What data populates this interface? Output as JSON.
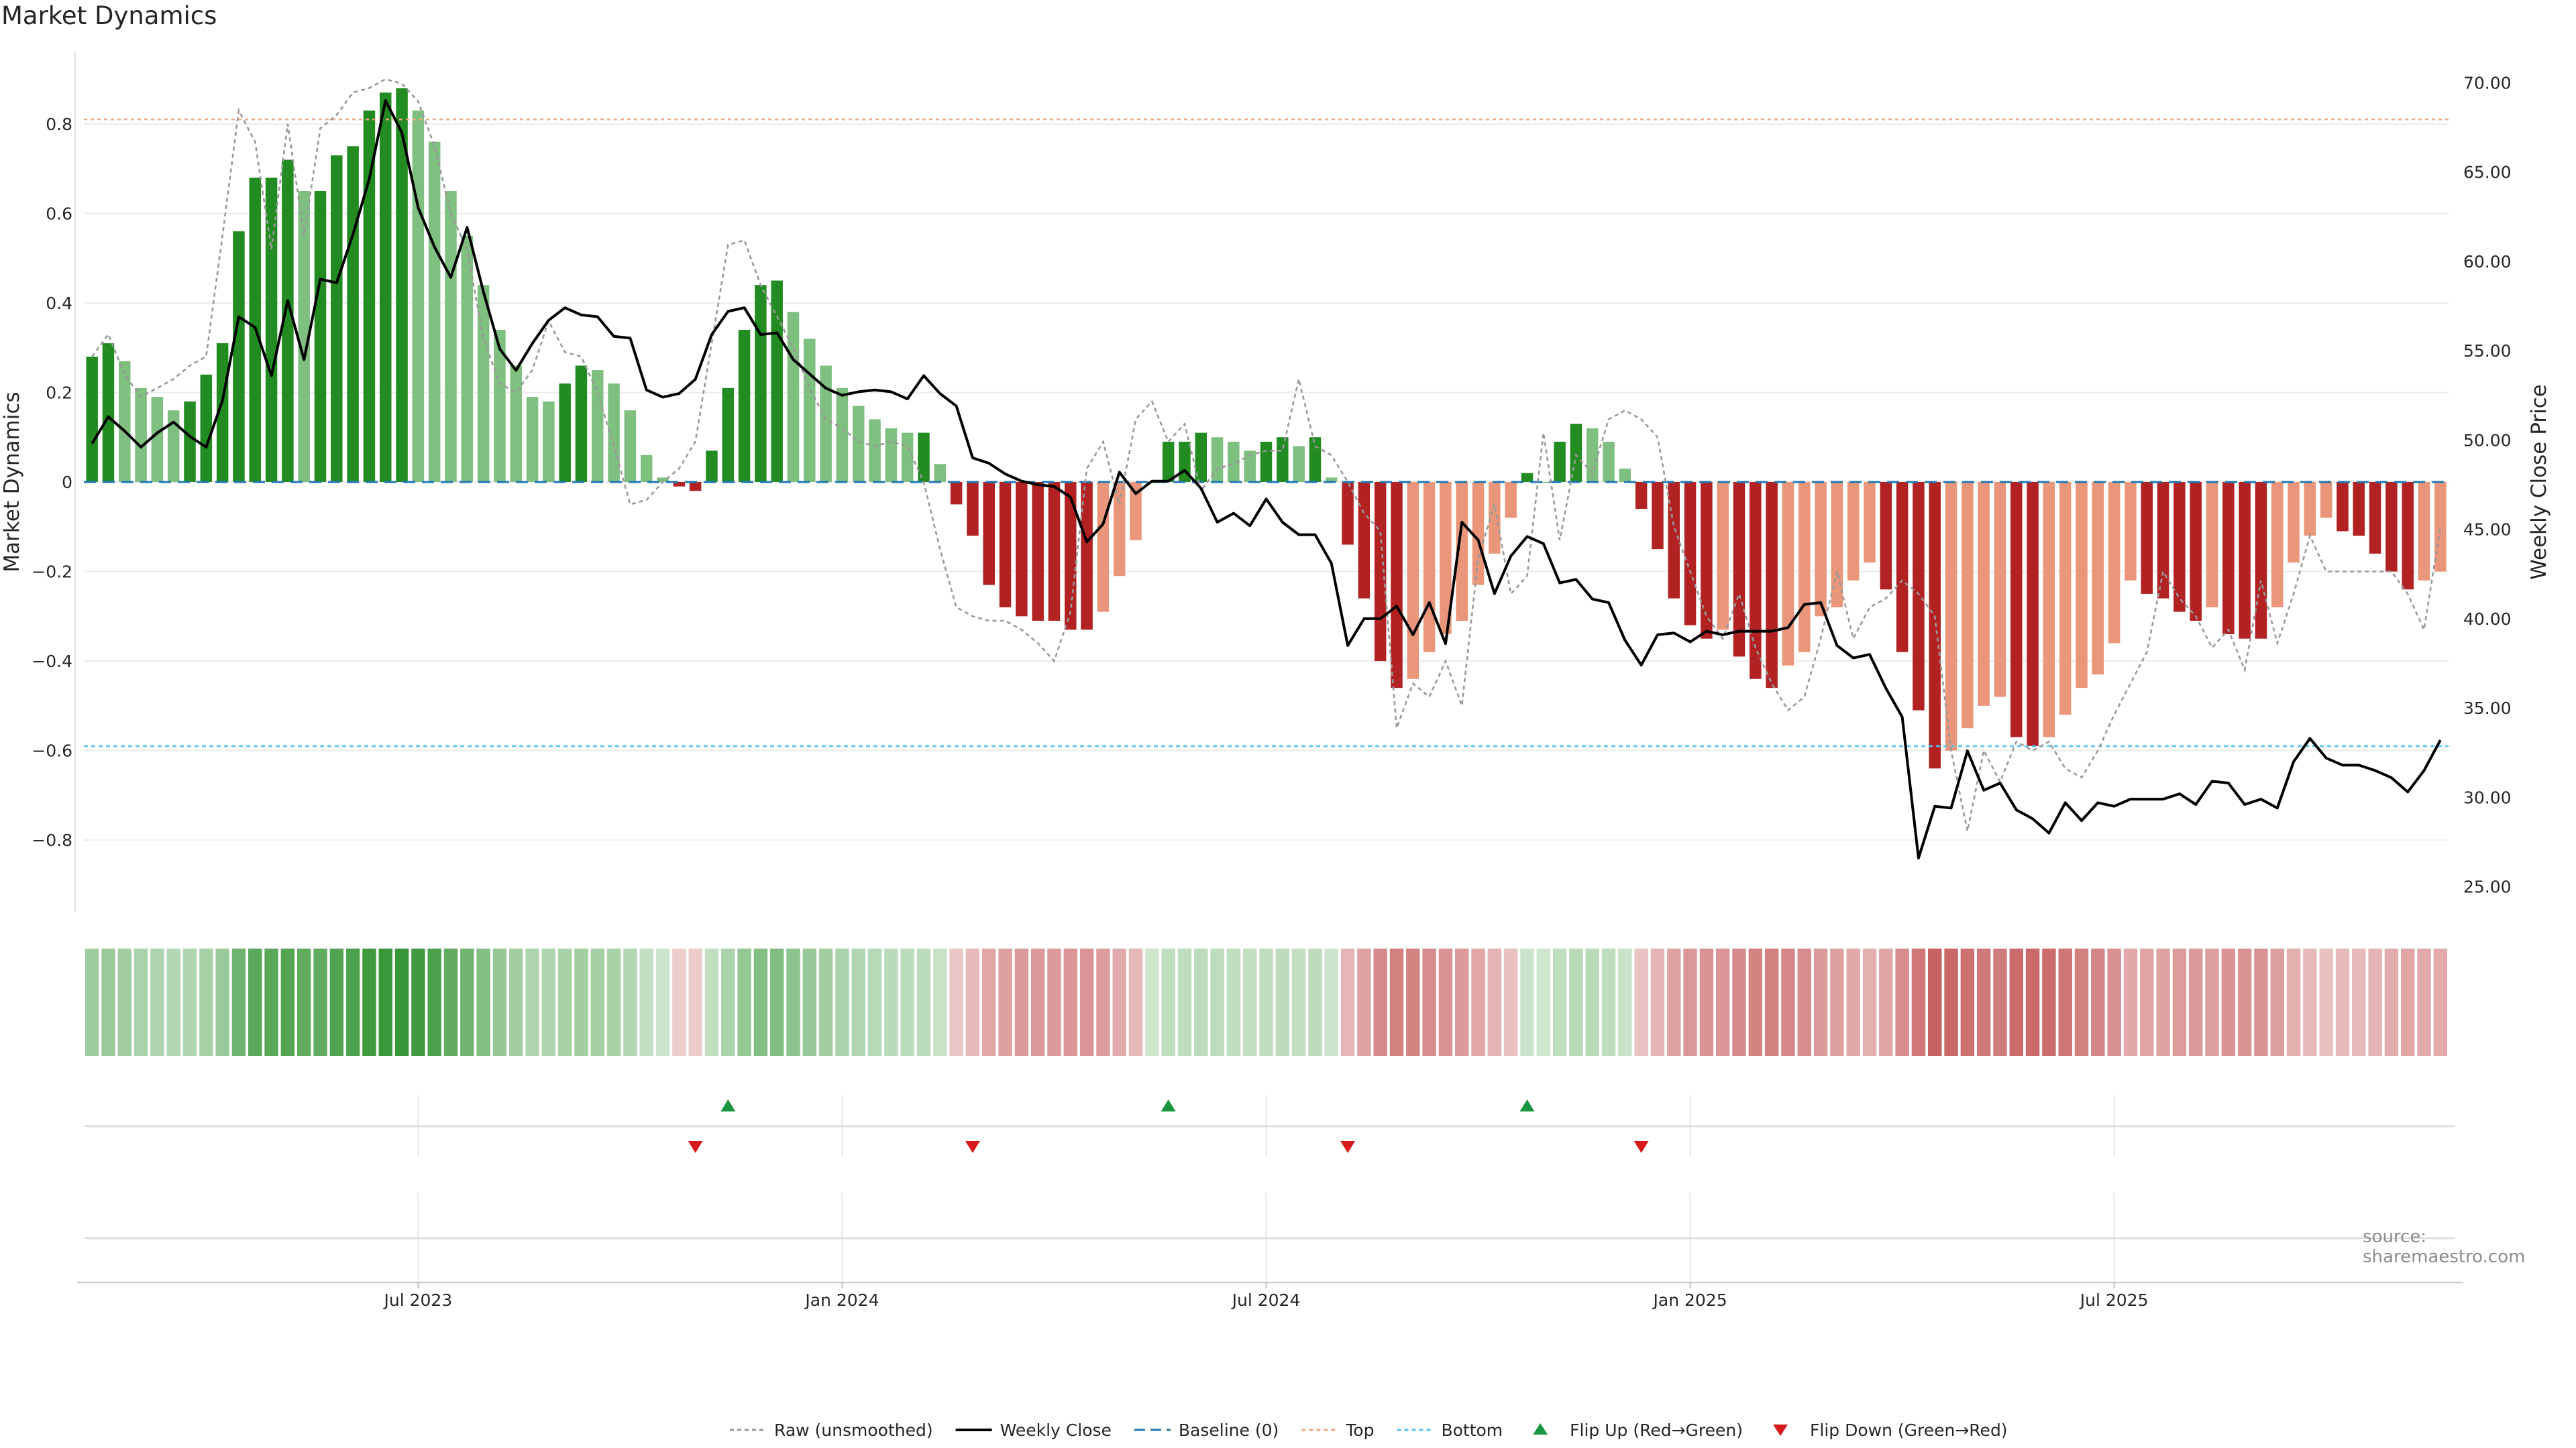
{
  "page": {
    "title": "Market Dynamics",
    "watermark": "source: sharemaestro.com"
  },
  "chart_data": {
    "type": "bar+line",
    "title": "Market Dynamics",
    "y_left_label": "Market Dynamics",
    "y_right_label": "Weekly Close Price",
    "y_left_lim": [
      -0.96,
      0.96
    ],
    "y_right_lim": [
      23.6,
      71.7
    ],
    "y_left_ticks": [
      "0.8",
      "0.6",
      "0.4",
      "0.2",
      "0",
      "−0.2",
      "−0.4",
      "−0.6",
      "−0.8"
    ],
    "y_left_tick_values": [
      0.8,
      0.6,
      0.4,
      0.2,
      0,
      -0.2,
      -0.4,
      -0.6,
      -0.8
    ],
    "y_right_ticks": [
      "70.00",
      "65.00",
      "60.00",
      "55.00",
      "50.00",
      "45.00",
      "40.00",
      "35.00",
      "30.00",
      "25.00"
    ],
    "y_right_tick_values": [
      70,
      65,
      60,
      55,
      50,
      45,
      40,
      35,
      30,
      25
    ],
    "x_ticks": [
      {
        "label": "Jul 2023",
        "week": 20
      },
      {
        "label": "Jan 2024",
        "week": 46
      },
      {
        "label": "Jul 2024",
        "week": 72
      },
      {
        "label": "Jan 2025",
        "week": 98
      },
      {
        "label": "Jul 2025",
        "week": 124
      }
    ],
    "top_threshold": 0.81,
    "bottom_threshold": -0.59,
    "top_label": "Top",
    "bottom_label": "Bottom",
    "baseline_label": "Baseline (0)",
    "grid": true,
    "legend_position": "bottom",
    "colors": {
      "strong_green": "#228b22",
      "light_green": "#7fbf7f",
      "strong_red": "#b22222",
      "light_red": "#e9967a",
      "close_line": "#000000",
      "raw_line": "#999999",
      "baseline": "#1f77b4",
      "top": "#f4a582",
      "bottom": "#4fc3f7",
      "flip_up": "#1a9641",
      "flip_down": "#d7191c"
    },
    "series": [
      {
        "name": "Raw (unsmoothed)",
        "values": [
          0.28,
          0.33,
          0.24,
          0.19,
          0.21,
          0.23,
          0.26,
          0.28,
          0.55,
          0.83,
          0.76,
          0.52,
          0.8,
          0.55,
          0.79,
          0.82,
          0.87,
          0.88,
          0.9,
          0.89,
          0.85,
          0.75,
          0.6,
          0.52,
          0.32,
          0.22,
          0.2,
          0.25,
          0.36,
          0.29,
          0.28,
          0.2,
          0.08,
          -0.05,
          -0.04,
          0.0,
          0.03,
          0.09,
          0.31,
          0.53,
          0.54,
          0.44,
          0.37,
          0.3,
          0.21,
          0.14,
          0.12,
          0.09,
          0.08,
          0.09,
          0.08,
          0.0,
          -0.15,
          -0.28,
          -0.3,
          -0.31,
          -0.31,
          -0.33,
          -0.36,
          -0.4,
          -0.29,
          0.03,
          0.09,
          -0.05,
          0.14,
          0.18,
          0.09,
          0.13,
          -0.02,
          0.03,
          0.04,
          0.06,
          0.07,
          0.07,
          0.23,
          0.08,
          0.06,
          0.0,
          -0.07,
          -0.11,
          -0.55,
          -0.45,
          -0.48,
          -0.4,
          -0.5,
          -0.17,
          -0.05,
          -0.25,
          -0.21,
          0.11,
          -0.13,
          0.06,
          0.02,
          0.14,
          0.16,
          0.14,
          0.1,
          -0.1,
          -0.2,
          -0.3,
          -0.35,
          -0.25,
          -0.37,
          -0.45,
          -0.51,
          -0.48,
          -0.35,
          -0.2,
          -0.35,
          -0.28,
          -0.26,
          -0.22,
          -0.25,
          -0.3,
          -0.6,
          -0.78,
          -0.6,
          -0.67,
          -0.58,
          -0.6,
          -0.58,
          -0.64,
          -0.66,
          -0.6,
          -0.52,
          -0.45,
          -0.38,
          -0.2,
          -0.26,
          -0.3,
          -0.37,
          -0.33,
          -0.42,
          -0.22,
          -0.36,
          -0.25,
          -0.12,
          -0.2,
          -0.2,
          -0.2,
          -0.2,
          -0.2,
          -0.25,
          -0.33,
          -0.1
        ],
        "color": "#999999"
      },
      {
        "name": "Weekly Close",
        "values": [
          49.8,
          51.3,
          50.5,
          49.6,
          50.4,
          51.0,
          50.2,
          49.6,
          52.2,
          56.9,
          56.3,
          53.6,
          57.8,
          54.5,
          59.0,
          58.8,
          61.5,
          64.6,
          69.0,
          67.2,
          63.0,
          60.8,
          59.1,
          61.9,
          58.3,
          55.1,
          53.9,
          55.4,
          56.7,
          57.4,
          57.0,
          56.9,
          55.8,
          55.7,
          52.8,
          52.4,
          52.6,
          53.4,
          55.9,
          57.2,
          57.4,
          55.9,
          56.0,
          54.5,
          53.7,
          52.9,
          52.5,
          52.7,
          52.8,
          52.7,
          52.3,
          53.6,
          52.6,
          51.9,
          49.0,
          48.7,
          48.1,
          47.7,
          47.5,
          47.4,
          46.8,
          44.3,
          45.3,
          48.2,
          47.0,
          47.7,
          47.7,
          48.3,
          47.3,
          45.4,
          45.9,
          45.2,
          46.7,
          45.4,
          44.7,
          44.7,
          43.1,
          38.5,
          40.0,
          40.0,
          40.7,
          39.1,
          40.9,
          38.6,
          45.4,
          44.4,
          41.4,
          43.5,
          44.6,
          44.2,
          42.0,
          42.2,
          41.1,
          40.9,
          38.8,
          37.4,
          39.1,
          39.2,
          38.7,
          39.3,
          39.1,
          39.3,
          39.3,
          39.3,
          39.5,
          40.8,
          40.9,
          38.5,
          37.8,
          38.0,
          36.1,
          34.5,
          26.6,
          29.5,
          29.4,
          32.6,
          30.4,
          30.8,
          29.3,
          28.8,
          28.0,
          29.7,
          28.7,
          29.7,
          29.5,
          29.9,
          29.9,
          29.9,
          30.2,
          29.6,
          30.9,
          30.8,
          29.6,
          29.9,
          29.4,
          32.0,
          33.3,
          32.2,
          31.8,
          31.8,
          31.5,
          31.1,
          30.3,
          31.5,
          33.2
        ],
        "color": "#000000"
      },
      {
        "name": "Baseline (0)",
        "values": [
          0
        ],
        "color": "#1f77b4"
      }
    ],
    "histogram": {
      "name": "Market Dynamics",
      "values": [
        0.28,
        0.31,
        0.27,
        0.21,
        0.19,
        0.16,
        0.18,
        0.24,
        0.31,
        0.56,
        0.68,
        0.68,
        0.72,
        0.65,
        0.65,
        0.73,
        0.75,
        0.83,
        0.87,
        0.88,
        0.83,
        0.76,
        0.65,
        0.55,
        0.44,
        0.34,
        0.26,
        0.19,
        0.18,
        0.22,
        0.26,
        0.25,
        0.22,
        0.16,
        0.06,
        0.01,
        -0.01,
        -0.02,
        0.07,
        0.21,
        0.34,
        0.44,
        0.45,
        0.38,
        0.32,
        0.26,
        0.21,
        0.17,
        0.14,
        0.12,
        0.11,
        0.11,
        0.04,
        -0.05,
        -0.12,
        -0.23,
        -0.28,
        -0.3,
        -0.31,
        -0.31,
        -0.33,
        -0.33,
        -0.29,
        -0.21,
        -0.13,
        0.0,
        0.09,
        0.09,
        0.11,
        0.1,
        0.09,
        0.07,
        0.09,
        0.1,
        0.08,
        0.1,
        0.01,
        -0.14,
        -0.26,
        -0.4,
        -0.46,
        -0.44,
        -0.38,
        -0.34,
        -0.31,
        -0.23,
        -0.16,
        -0.08,
        0.02,
        0.0,
        0.09,
        0.13,
        0.12,
        0.09,
        0.03,
        -0.06,
        -0.15,
        -0.26,
        -0.32,
        -0.35,
        -0.33,
        -0.39,
        -0.44,
        -0.46,
        -0.41,
        -0.38,
        -0.3,
        -0.28,
        -0.22,
        -0.18,
        -0.24,
        -0.38,
        -0.51,
        -0.64,
        -0.6,
        -0.55,
        -0.5,
        -0.48,
        -0.57,
        -0.59,
        -0.57,
        -0.52,
        -0.46,
        -0.43,
        -0.36,
        -0.22,
        -0.25,
        -0.26,
        -0.29,
        -0.31,
        -0.28,
        -0.34,
        -0.35,
        -0.35,
        -0.28,
        -0.18,
        -0.12,
        -0.08,
        -0.11,
        -0.12,
        -0.16,
        -0.2,
        -0.24,
        -0.22,
        -0.2
      ]
    },
    "flip_up_weeks": [
      39,
      66,
      88
    ],
    "flip_down_weeks": [
      37,
      54,
      77,
      95
    ],
    "legend": [
      {
        "label": "Raw (unsmoothed)",
        "kind": "dotted",
        "color": "#999999"
      },
      {
        "label": "Weekly Close",
        "kind": "solid",
        "color": "#000000"
      },
      {
        "label": "Baseline (0)",
        "kind": "dashed",
        "color": "#1f77b4"
      },
      {
        "label": "Top",
        "kind": "dotted",
        "color": "#f4a582"
      },
      {
        "label": "Bottom",
        "kind": "dotted",
        "color": "#4fc3f7"
      },
      {
        "label": "Flip Up (Red→Green)",
        "kind": "triangle-up",
        "color": "#1a9641"
      },
      {
        "label": "Flip Down (Green→Red)",
        "kind": "triangle-down",
        "color": "#d7191c"
      }
    ]
  }
}
